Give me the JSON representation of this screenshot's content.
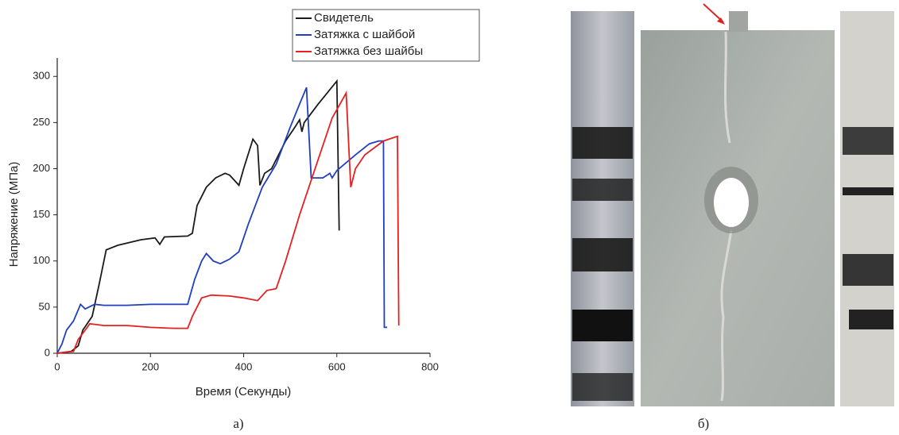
{
  "chart_data": {
    "type": "line",
    "x_label": "Время (Секунды)",
    "y_label": "Напряжение (МПа)",
    "xlim": [
      0,
      800
    ],
    "xticks": [
      0,
      200,
      400,
      600,
      800
    ],
    "ylim": [
      0,
      320
    ],
    "yticks": [
      0,
      50,
      100,
      150,
      200,
      250,
      300
    ],
    "legend": "top-right",
    "series": [
      {
        "name": "Свидетель",
        "color": "#1a1a1a",
        "x": [
          0,
          30,
          45,
          55,
          75,
          90,
          105,
          130,
          180,
          210,
          220,
          230,
          280,
          290,
          300,
          320,
          340,
          360,
          370,
          390,
          400,
          420,
          430,
          435,
          445,
          460,
          490,
          510,
          520,
          525,
          530,
          560,
          600,
          605
        ],
        "values": [
          0,
          2,
          8,
          25,
          40,
          75,
          112,
          117,
          123,
          125,
          118,
          126,
          127,
          130,
          160,
          180,
          190,
          195,
          193,
          182,
          200,
          232,
          225,
          182,
          195,
          200,
          230,
          245,
          253,
          240,
          250,
          270,
          295,
          133
        ]
      },
      {
        "name": "Затяжка с шайбой",
        "color": "#1f3fbf",
        "x": [
          0,
          10,
          20,
          35,
          50,
          60,
          80,
          100,
          150,
          200,
          280,
          295,
          310,
          320,
          335,
          350,
          370,
          390,
          410,
          440,
          470,
          500,
          520,
          535,
          545,
          570,
          585,
          590,
          600,
          640,
          670,
          690,
          700,
          702,
          708
        ],
        "values": [
          0,
          10,
          25,
          35,
          53,
          48,
          53,
          52,
          52,
          53,
          53,
          80,
          100,
          108,
          100,
          97,
          102,
          110,
          140,
          180,
          205,
          245,
          270,
          288,
          190,
          190,
          195,
          190,
          198,
          215,
          227,
          230,
          230,
          28,
          28
        ]
      },
      {
        "name": "Затяжка без шайбы",
        "color": "#e62020",
        "x": [
          0,
          35,
          45,
          60,
          70,
          100,
          150,
          200,
          250,
          280,
          290,
          310,
          330,
          370,
          400,
          430,
          450,
          470,
          490,
          520,
          560,
          590,
          620,
          630,
          640,
          660,
          700,
          730,
          733
        ],
        "values": [
          0,
          2,
          15,
          25,
          32,
          30,
          30,
          28,
          27,
          27,
          40,
          60,
          63,
          62,
          60,
          57,
          68,
          70,
          100,
          150,
          210,
          255,
          282,
          180,
          200,
          215,
          230,
          235,
          30
        ]
      }
    ]
  },
  "panel_labels": [
    "а)",
    "б)"
  ]
}
